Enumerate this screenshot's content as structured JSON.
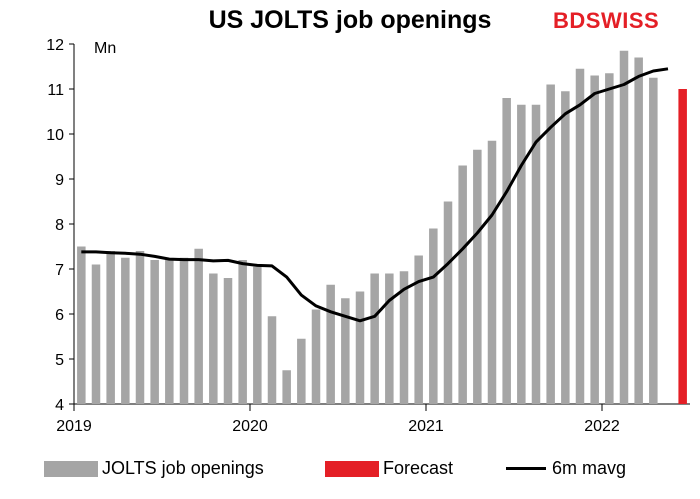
{
  "chart_data": {
    "type": "bar",
    "title": "US JOLTS job openings",
    "ylabel": "Mn",
    "ylim": [
      4,
      12
    ],
    "y_ticks": [
      "4",
      "5",
      "6",
      "7",
      "8",
      "9",
      "10",
      "11",
      "12"
    ],
    "x_ticks": [
      "2019",
      "2020",
      "2021",
      "2022"
    ],
    "grid": false,
    "legend_position": "bottom",
    "colors": {
      "bars": "#a5a5a5",
      "forecast": "#e41f26",
      "line": "#000000"
    },
    "series": [
      {
        "name": "JOLTS job openings",
        "type": "bar",
        "values": [
          7.5,
          7.1,
          7.4,
          7.25,
          7.4,
          7.2,
          7.2,
          7.25,
          7.45,
          6.9,
          6.8,
          7.2,
          7.05,
          5.95,
          4.75,
          5.45,
          6.1,
          6.65,
          6.35,
          6.5,
          6.9,
          6.9,
          6.95,
          7.3,
          7.9,
          8.5,
          9.3,
          9.65,
          9.85,
          10.8,
          10.65,
          10.65,
          11.1,
          10.95,
          11.45,
          11.3,
          11.35,
          11.85,
          11.7,
          11.25
        ]
      },
      {
        "name": "Forecast",
        "type": "bar",
        "index": 41,
        "values": [
          11.0
        ]
      },
      {
        "name": "6m mavg",
        "type": "line",
        "values": [
          7.38,
          7.38,
          7.36,
          7.35,
          7.33,
          7.28,
          7.22,
          7.21,
          7.21,
          7.18,
          7.19,
          7.12,
          7.08,
          7.07,
          6.82,
          6.42,
          6.18,
          6.05,
          5.95,
          5.85,
          5.95,
          6.3,
          6.55,
          6.72,
          6.82,
          7.12,
          7.45,
          7.8,
          8.2,
          8.72,
          9.3,
          9.82,
          10.15,
          10.45,
          10.65,
          10.9,
          11.0,
          11.1,
          11.28,
          11.4,
          11.45
        ]
      }
    ]
  },
  "brand": {
    "bd": "BD",
    "swiss": "SWISS"
  },
  "legend": {
    "bars": "JOLTS job openings",
    "forecast": "Forecast",
    "line": "6m mavg"
  }
}
